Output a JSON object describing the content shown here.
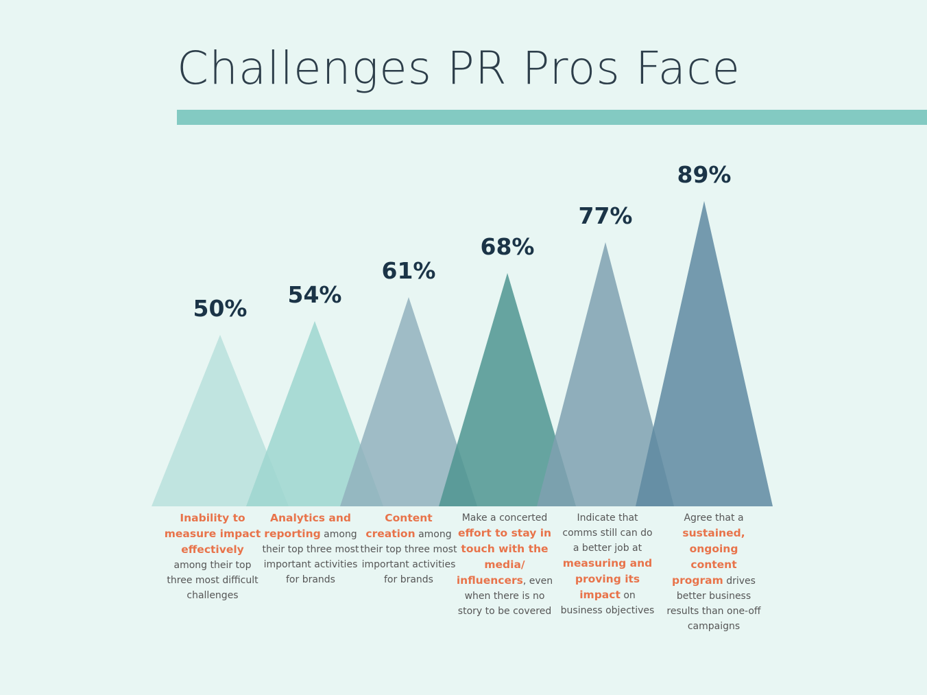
{
  "chart_data": {
    "type": "triangle",
    "title": "Challenges PR Pros Face",
    "values": [
      50,
      54,
      61,
      68,
      77,
      89
    ],
    "value_labels": [
      "50%",
      "54%",
      "61%",
      "68%",
      "77%",
      "89%"
    ],
    "colors": [
      "#b9e0dc",
      "#9dd6cf",
      "#92b1bd",
      "#4f9591",
      "#7fa1b0",
      "#5f8aa1"
    ],
    "ylim": [
      0,
      100
    ],
    "categories": [
      [
        {
          "text": "Inability to measure impact effectively",
          "bold": true
        },
        {
          "text": "among their top three most difficult challenges",
          "bold": false
        }
      ],
      [
        {
          "text": "Analytics and reporting",
          "bold": true
        },
        {
          "text": "among their top three most important activities for brands",
          "bold": false
        }
      ],
      [
        {
          "text": "Content creation",
          "bold": true
        },
        {
          "text": "among their top three most important activities for brands",
          "bold": false
        }
      ],
      [
        {
          "text": "Make a concerted",
          "bold": false
        },
        {
          "text": "effort to stay in touch with the media/ influencers",
          "bold": true
        },
        {
          "text": ", even when there is no story to be covered",
          "bold": false
        }
      ],
      [
        {
          "text": "Indicate that comms still can do a better job at",
          "bold": false
        },
        {
          "text": "measuring and proving its impact",
          "bold": true
        },
        {
          "text": "on business objectives",
          "bold": false
        }
      ],
      [
        {
          "text": "Agree that a",
          "bold": false
        },
        {
          "text": "sustained, ongoing content program",
          "bold": true
        },
        {
          "text": "drives better business results than one-off campaigns",
          "bold": false
        }
      ]
    ]
  }
}
